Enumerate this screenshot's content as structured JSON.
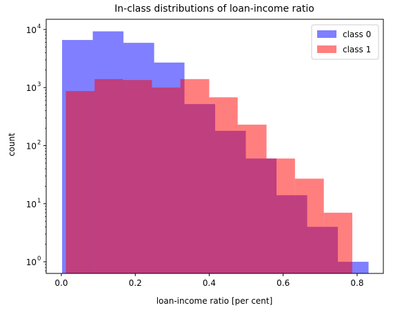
{
  "chart_data": {
    "type": "histogram",
    "title": "In-class distributions of loan-income ratio",
    "xlabel": "loan-income ratio [per cent]",
    "ylabel": "count",
    "yscale": "log",
    "xlim": [
      -0.041,
      0.871
    ],
    "ylim": [
      0.63,
      15000
    ],
    "x_ticks": [
      0.0,
      0.2,
      0.4,
      0.6,
      0.8
    ],
    "x_tick_labels": [
      "0.0",
      "0.2",
      "0.4",
      "0.6",
      "0.8"
    ],
    "y_ticks": [
      1,
      10,
      100,
      1000,
      10000
    ],
    "y_tick_labels": [
      "10",
      "10",
      "10",
      "10",
      "10"
    ],
    "y_tick_exponents": [
      "0",
      "1",
      "2",
      "3",
      "4"
    ],
    "legend_position": "top-right",
    "series": [
      {
        "name": "class 0",
        "color": "#0000ff",
        "opacity": 0.5,
        "bins": [
          {
            "x0": 0.002,
            "x1": 0.085,
            "count": 6600
          },
          {
            "x0": 0.085,
            "x1": 0.168,
            "count": 9300
          },
          {
            "x0": 0.168,
            "x1": 0.251,
            "count": 5900
          },
          {
            "x0": 0.251,
            "x1": 0.333,
            "count": 2700
          },
          {
            "x0": 0.333,
            "x1": 0.416,
            "count": 520
          },
          {
            "x0": 0.416,
            "x1": 0.499,
            "count": 180
          },
          {
            "x0": 0.499,
            "x1": 0.582,
            "count": 60
          },
          {
            "x0": 0.582,
            "x1": 0.665,
            "count": 14
          },
          {
            "x0": 0.665,
            "x1": 0.748,
            "count": 4
          },
          {
            "x0": 0.748,
            "x1": 0.831,
            "count": 1
          }
        ]
      },
      {
        "name": "class 1",
        "color": "#ff0000",
        "opacity": 0.5,
        "bins": [
          {
            "x0": 0.012,
            "x1": 0.09,
            "count": 870
          },
          {
            "x0": 0.09,
            "x1": 0.167,
            "count": 1400
          },
          {
            "x0": 0.167,
            "x1": 0.245,
            "count": 1350
          },
          {
            "x0": 0.245,
            "x1": 0.322,
            "count": 1000
          },
          {
            "x0": 0.322,
            "x1": 0.4,
            "count": 1400
          },
          {
            "x0": 0.4,
            "x1": 0.477,
            "count": 680
          },
          {
            "x0": 0.477,
            "x1": 0.555,
            "count": 230
          },
          {
            "x0": 0.555,
            "x1": 0.632,
            "count": 60
          },
          {
            "x0": 0.632,
            "x1": 0.71,
            "count": 27
          },
          {
            "x0": 0.71,
            "x1": 0.787,
            "count": 7
          }
        ]
      }
    ]
  }
}
